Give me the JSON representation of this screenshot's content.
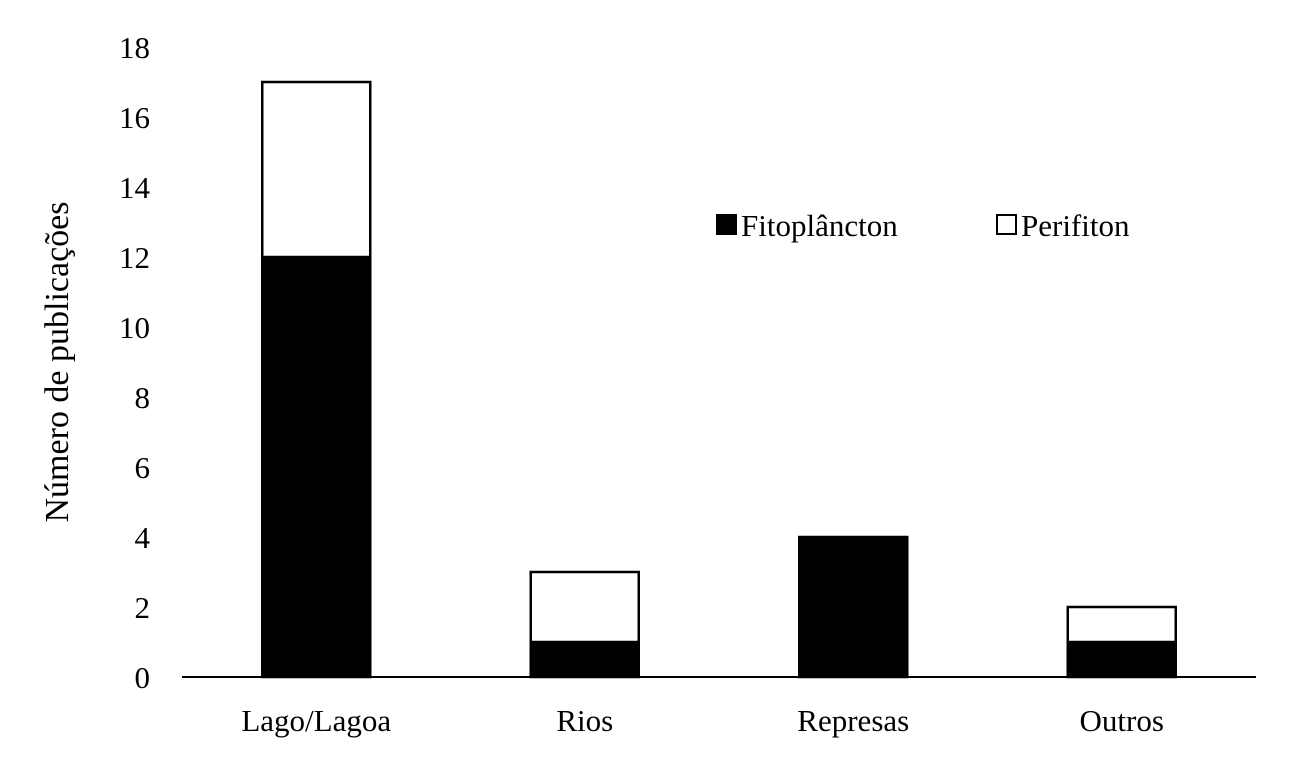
{
  "chart_data": {
    "type": "bar",
    "stacked": true,
    "categories": [
      "Lago/Lagoa",
      "Rios",
      "Represas",
      "Outros"
    ],
    "series": [
      {
        "name": "Fitoplâncton",
        "values": [
          12,
          1,
          4,
          1
        ],
        "color": "#000000"
      },
      {
        "name": "Perifiton",
        "values": [
          5,
          2,
          0,
          1
        ],
        "color": "#ffffff"
      }
    ],
    "title": "",
    "xlabel": "",
    "ylabel": "Número de publicações",
    "ylim": [
      0,
      18
    ],
    "yticks": [
      "0",
      "2",
      "4",
      "6",
      "8",
      "10",
      "12",
      "14",
      "16",
      "18"
    ],
    "grid": false,
    "legend_position": "top-right"
  }
}
